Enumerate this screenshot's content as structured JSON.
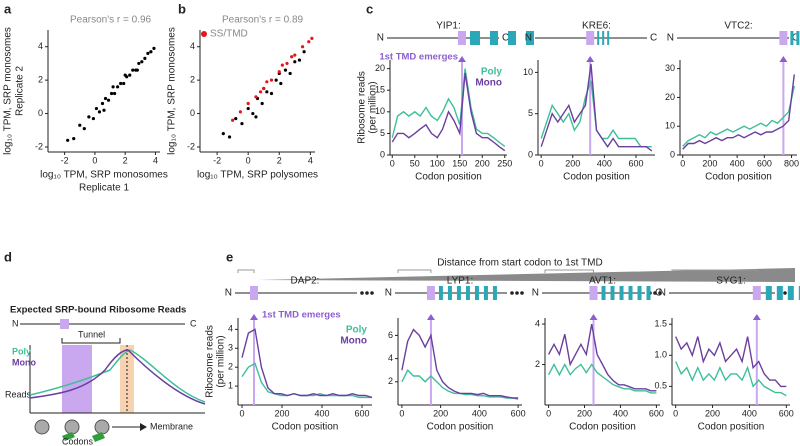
{
  "panel_letters": [
    "a",
    "b",
    "c",
    "d",
    "e"
  ],
  "e_header": "Distance from start codon to 1st TMD",
  "d_diagram": {
    "title": "Expected SRP-bound Ribosome Reads",
    "n": "N",
    "c": "C",
    "tunnel": "Tunnel",
    "poly": "Poly",
    "mono": "Mono",
    "ylabel": "Reads",
    "xlabel": "Codons",
    "membrane": "Membrane"
  },
  "chart_data": [
    {
      "type": "scatter",
      "annotation": "Pearson's r = 0.96",
      "xlabel": [
        "log₁₀ TPM, SRP monosomes",
        "Replicate 1"
      ],
      "ylabel": [
        "log₁₀ TPM, SRP monosomes",
        "Replicate 2"
      ],
      "xlim": [
        -3.1,
        4.3
      ],
      "ylim": [
        -2.3,
        5
      ],
      "xticks": [
        -2,
        0,
        2,
        4
      ],
      "yticks": [
        -2,
        0,
        2,
        4
      ],
      "series": [
        {
          "color": "#000000",
          "x": [
            -1.8,
            -1.4,
            -1.0,
            -0.7,
            -0.4,
            -0.1,
            0.1,
            0.3,
            0.5,
            0.7,
            0.9,
            1.1,
            1.3,
            1.5,
            1.7,
            1.9,
            2.1,
            2.3,
            2.5,
            2.7,
            2.9,
            3.1,
            3.3,
            3.5,
            3.7,
            3.9,
            0.6,
            1.2,
            2.0,
            2.8
          ],
          "values": [
            -1.6,
            -1.5,
            -0.7,
            -0.9,
            -0.2,
            -0.3,
            0.3,
            0.1,
            0.6,
            0.9,
            0.8,
            1.2,
            1.2,
            1.6,
            1.8,
            1.8,
            2.2,
            2.3,
            2.6,
            2.6,
            3.0,
            3.1,
            3.3,
            3.6,
            3.7,
            3.9,
            0.2,
            1.6,
            2.3,
            2.6
          ]
        }
      ]
    },
    {
      "type": "scatter",
      "annotation": "Pearson's r = 0.89",
      "xlabel": [
        "log₁₀ TPM, SRP polysomes"
      ],
      "ylabel": [
        "log₁₀ TPM, SRP monosomes"
      ],
      "xlim": [
        -3.1,
        4.3
      ],
      "ylim": [
        -2.3,
        5
      ],
      "xticks": [
        -2,
        0,
        2,
        4
      ],
      "yticks": [
        -2,
        0,
        2,
        4
      ],
      "series": [
        {
          "color": "#000000",
          "x": [
            -1.6,
            -1.2,
            -0.8,
            -0.4,
            0,
            0.3,
            0.6,
            0.9,
            1.2,
            1.5,
            1.8,
            2.1,
            2.4,
            2.7,
            3.0,
            3.3,
            3.6,
            0.5,
            1.0,
            2.0
          ],
          "values": [
            -1.2,
            -1.4,
            -0.3,
            -0.6,
            0.3,
            0.0,
            0.9,
            0.6,
            1.3,
            1.2,
            2.0,
            1.8,
            2.6,
            2.4,
            3.1,
            3.2,
            3.7,
            -0.2,
            1.5,
            2.4
          ]
        },
        {
          "name": "SS/TMD",
          "color": "#e8141b",
          "x": [
            -1.0,
            -0.5,
            0,
            0.5,
            1.0,
            1.5,
            2.0,
            2.5,
            3.0,
            3.5,
            3.9,
            4.1,
            1.2,
            2.2,
            0.8,
            2.8
          ],
          "values": [
            -0.4,
            0.1,
            0.6,
            1.0,
            1.5,
            2.0,
            2.5,
            3.0,
            3.5,
            4.0,
            4.3,
            4.5,
            1.9,
            2.9,
            1.3,
            3.4
          ]
        }
      ]
    },
    {
      "type": "line",
      "gene": "YIP1:",
      "annotation": "1st TMD emerges",
      "tmd_codon": 155,
      "xlabel": "Codon position",
      "ylabel": [
        "Ribosome reads",
        "(per million)"
      ],
      "xlim": [
        -5,
        255
      ],
      "ylim": [
        0,
        22
      ],
      "xticks": [
        0,
        50,
        100,
        150,
        200,
        250
      ],
      "yticks": [
        0,
        5,
        10,
        15,
        20
      ],
      "x": [
        0,
        12,
        25,
        37,
        50,
        62,
        75,
        87,
        100,
        112,
        125,
        137,
        150,
        162,
        175,
        187,
        200,
        212,
        225,
        237,
        250
      ],
      "series": [
        {
          "name": "Poly",
          "color": "#3dbf9a",
          "values": [
            4,
            9,
            10,
            9,
            10,
            9,
            11,
            9,
            8,
            10,
            13,
            11,
            7,
            20,
            11,
            6,
            5,
            5,
            4,
            3,
            2
          ]
        },
        {
          "name": "Mono",
          "color": "#6a3fa0",
          "values": [
            3,
            5,
            5,
            4,
            5,
            6,
            7,
            5,
            4,
            6,
            10,
            8,
            5,
            19,
            10,
            5,
            4,
            4,
            3,
            2,
            1
          ]
        }
      ]
    },
    {
      "type": "line",
      "gene": "KRE6:",
      "tmd_codon": 310,
      "xlabel": "Codon position",
      "xlim": [
        -20,
        720
      ],
      "ylim": [
        0,
        11.5
      ],
      "xticks": [
        0,
        200,
        400,
        600
      ],
      "yticks": [
        0,
        5,
        10
      ],
      "x": [
        0,
        35,
        70,
        105,
        140,
        175,
        210,
        245,
        280,
        315,
        350,
        385,
        420,
        455,
        490,
        525,
        560,
        595,
        630,
        665,
        700
      ],
      "series": [
        {
          "color": "#3dbf9a",
          "values": [
            2,
            4,
            6,
            5,
            4,
            5,
            3,
            4,
            7,
            9,
            3,
            2,
            2,
            3,
            2,
            2,
            2,
            2,
            1,
            1,
            1
          ]
        },
        {
          "color": "#6a3fa0",
          "values": [
            1,
            3,
            5,
            4,
            5,
            6,
            4,
            5,
            6,
            11,
            3,
            2,
            1,
            2,
            1,
            1,
            1,
            1,
            1,
            1,
            0.5
          ]
        }
      ]
    },
    {
      "type": "line",
      "gene": "VTC2:",
      "tmd_codon": 740,
      "xlabel": "Codon position",
      "xlim": [
        -20,
        840
      ],
      "ylim": [
        0,
        33
      ],
      "xticks": [
        0,
        200,
        400,
        600,
        800
      ],
      "yticks": [
        0,
        10,
        20,
        30
      ],
      "x": [
        0,
        41,
        82,
        123,
        164,
        205,
        246,
        287,
        328,
        369,
        410,
        451,
        492,
        533,
        574,
        615,
        656,
        697,
        738,
        779,
        820
      ],
      "series": [
        {
          "color": "#3dbf9a",
          "values": [
            3,
            5,
            6,
            7,
            6,
            8,
            7,
            8,
            9,
            8,
            9,
            10,
            9,
            10,
            11,
            10,
            12,
            11,
            13,
            15,
            24
          ]
        },
        {
          "color": "#6a3fa0",
          "values": [
            2,
            4,
            4,
            5,
            4,
            5,
            6,
            5,
            6,
            6,
            7,
            6,
            7,
            8,
            7,
            8,
            8,
            9,
            10,
            12,
            28
          ]
        }
      ]
    },
    {
      "type": "line",
      "gene": "DAP2:",
      "annotation": "1st TMD emerges",
      "tmd_codon": 60,
      "xlabel": "Codon position",
      "ylabel": [
        "Ribosome reads",
        "(per million)"
      ],
      "xlim": [
        -20,
        650
      ],
      "ylim": [
        0,
        4.6
      ],
      "xticks": [
        0,
        200,
        400,
        600
      ],
      "yticks": [
        1,
        2,
        3,
        4
      ],
      "x": [
        0,
        32,
        65,
        97,
        130,
        162,
        195,
        227,
        260,
        292,
        325,
        357,
        390,
        422,
        455,
        487,
        520,
        552,
        585,
        617,
        650
      ],
      "series": [
        {
          "name": "Poly",
          "color": "#3dbf9a",
          "values": [
            1.5,
            2.0,
            2.2,
            1.2,
            0.7,
            0.6,
            0.5,
            0.5,
            0.6,
            0.5,
            0.5,
            0.5,
            0.6,
            0.5,
            0.5,
            0.5,
            0.5,
            0.5,
            0.4,
            0.4,
            0.4
          ]
        },
        {
          "name": "Mono",
          "color": "#6a3fa0",
          "values": [
            2.5,
            3.8,
            4.0,
            2.0,
            0.9,
            0.6,
            0.6,
            0.5,
            0.6,
            0.5,
            0.5,
            0.6,
            0.5,
            0.5,
            0.6,
            0.5,
            0.5,
            0.6,
            0.5,
            0.5,
            0.4
          ]
        }
      ]
    },
    {
      "type": "line",
      "gene": "LYP1:",
      "tmd_codon": 150,
      "xlabel": "Codon position",
      "xlim": [
        -20,
        620
      ],
      "ylim": [
        0,
        7.5
      ],
      "xticks": [
        0,
        200,
        400,
        600
      ],
      "yticks": [
        2,
        4,
        6
      ],
      "x": [
        0,
        30,
        60,
        90,
        120,
        150,
        180,
        210,
        240,
        270,
        300,
        330,
        360,
        390,
        420,
        450,
        480,
        510,
        540,
        570,
        600
      ],
      "series": [
        {
          "color": "#3dbf9a",
          "values": [
            2,
            3,
            2.5,
            2.5,
            2,
            2.5,
            2,
            1.5,
            1.2,
            1,
            1,
            0.9,
            0.9,
            0.8,
            0.8,
            0.7,
            0.7,
            0.7,
            0.6,
            0.6,
            0.5
          ]
        },
        {
          "color": "#6a3fa0",
          "values": [
            3,
            5.5,
            6.5,
            6,
            5,
            6,
            3,
            2,
            1.5,
            1.2,
            1,
            1,
            1,
            0.9,
            1,
            0.8,
            0.8,
            0.8,
            0.7,
            0.6,
            0.6
          ]
        }
      ]
    },
    {
      "type": "line",
      "gene": "AVT1:",
      "tmd_codon": 250,
      "xlabel": "Codon position",
      "xlim": [
        -20,
        620
      ],
      "ylim": [
        0,
        4.3
      ],
      "xticks": [
        0,
        200,
        400,
        600
      ],
      "yticks": [
        2,
        4
      ],
      "x": [
        0,
        30,
        60,
        90,
        120,
        150,
        180,
        210,
        240,
        270,
        300,
        330,
        360,
        390,
        420,
        450,
        480,
        510,
        540,
        570,
        600
      ],
      "series": [
        {
          "color": "#3dbf9a",
          "values": [
            1.5,
            2,
            1.5,
            2,
            1.5,
            1.8,
            2,
            1.6,
            2,
            1.6,
            1.4,
            1.2,
            1,
            0.9,
            0.8,
            0.8,
            0.7,
            0.7,
            0.7,
            0.6,
            0.6
          ]
        },
        {
          "color": "#6a3fa0",
          "values": [
            2.5,
            3,
            2.5,
            3.5,
            2,
            2.5,
            3,
            2.5,
            4,
            2.5,
            2,
            1.5,
            1.2,
            1,
            1,
            0.9,
            0.8,
            0.8,
            0.8,
            0.7,
            0.7
          ]
        }
      ]
    },
    {
      "type": "line",
      "gene": "SYG1:",
      "tmd_codon": 440,
      "xlabel": "Codon position",
      "xlim": [
        -20,
        620
      ],
      "ylim": [
        0.2,
        1.6
      ],
      "xticks": [
        0,
        200,
        400,
        600
      ],
      "yticks": [
        0.5,
        {
          "value": 1,
          "label": "1.0"
        },
        1.5
      ],
      "x": [
        0,
        30,
        60,
        90,
        120,
        150,
        180,
        210,
        240,
        270,
        300,
        330,
        360,
        390,
        420,
        450,
        480,
        510,
        540,
        570,
        600
      ],
      "series": [
        {
          "color": "#3dbf9a",
          "values": [
            0.9,
            0.7,
            0.8,
            0.6,
            0.8,
            0.6,
            0.7,
            0.6,
            0.8,
            0.6,
            0.7,
            0.7,
            0.6,
            0.8,
            0.5,
            0.6,
            0.5,
            0.45,
            0.4,
            0.4,
            0.35
          ]
        },
        {
          "color": "#6a3fa0",
          "values": [
            1.3,
            1.1,
            1.2,
            1.0,
            1.3,
            0.9,
            1.1,
            1.0,
            1.2,
            0.9,
            1.0,
            1.1,
            0.9,
            1.3,
            0.8,
            0.9,
            0.7,
            0.6,
            0.6,
            0.5,
            0.5
          ]
        }
      ]
    }
  ]
}
